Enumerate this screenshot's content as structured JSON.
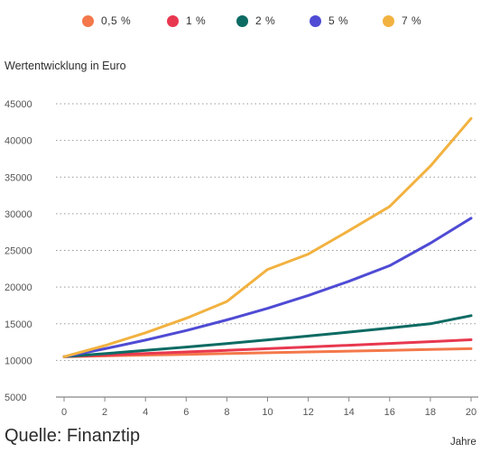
{
  "chart_data": {
    "type": "line",
    "ylabel": "Wertentwicklung in Euro",
    "xlabel": "Jahre",
    "source": "Quelle: Finanztip",
    "x": [
      0,
      2,
      4,
      6,
      8,
      10,
      12,
      14,
      16,
      18,
      20
    ],
    "x_ticks": [
      "0",
      "2",
      "4",
      "6",
      "8",
      "10",
      "12",
      "14",
      "16",
      "18",
      "20"
    ],
    "y_ticks": [
      "5000",
      "10000",
      "15000",
      "20000",
      "25000",
      "30000",
      "35000",
      "40000",
      "45000"
    ],
    "ylim": [
      5000,
      45000
    ],
    "xlim": [
      0,
      20
    ],
    "grid": "horizontal dotted",
    "legend_position": "top",
    "series": [
      {
        "name": "0,5 %",
        "color": "#f4784a",
        "values": [
          10500,
          10610,
          10720,
          10820,
          10930,
          11040,
          11150,
          11260,
          11380,
          11490,
          11600
        ]
      },
      {
        "name": "1 %",
        "color": "#e8384f",
        "values": [
          10500,
          10710,
          10930,
          11150,
          11370,
          11600,
          11830,
          12070,
          12310,
          12560,
          12810
        ]
      },
      {
        "name": "2 %",
        "color": "#0c6b63",
        "values": [
          10500,
          10920,
          11360,
          11820,
          12300,
          12800,
          13320,
          13860,
          14420,
          15000,
          16100
        ]
      },
      {
        "name": "5 %",
        "color": "#4f4bd4",
        "values": [
          10500,
          11580,
          12760,
          14070,
          15520,
          17100,
          18860,
          20790,
          22920,
          25980,
          29400
        ]
      },
      {
        "name": "7 %",
        "color": "#f2b240",
        "values": [
          10500,
          12020,
          13760,
          15750,
          18030,
          22400,
          24500,
          27700,
          31000,
          36500,
          43000
        ]
      }
    ]
  }
}
